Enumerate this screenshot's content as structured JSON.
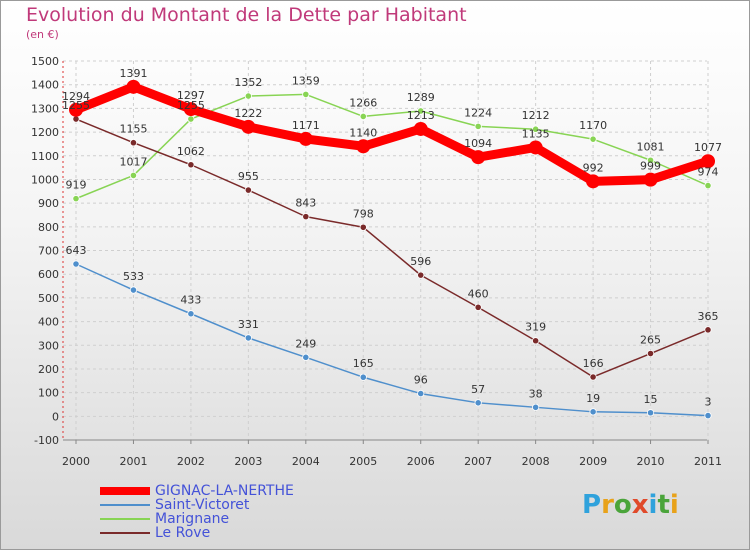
{
  "title": "Evolution du Montant de la Dette par Habitant",
  "subtitle": "(en €)",
  "logo": {
    "text": "Proxiti",
    "letter_colors": [
      "#2fa2dc",
      "#e8a21a",
      "#4aa43a",
      "#e04a2a",
      "#2fa2dc",
      "#4aa43a",
      "#e8a21a"
    ]
  },
  "chart_data": {
    "type": "line",
    "title": "Evolution du Montant de la Dette par Habitant",
    "subtitle": "(en €)",
    "x": [
      "2000",
      "2001",
      "2002",
      "2003",
      "2004",
      "2005",
      "2006",
      "2007",
      "2008",
      "2009",
      "2010",
      "2011"
    ],
    "ylim": [
      -100,
      1500
    ],
    "yticks": [
      "-100",
      "0",
      "100",
      "200",
      "300",
      "400",
      "500",
      "600",
      "700",
      "800",
      "900",
      "1000",
      "1100",
      "1200",
      "1300",
      "1400",
      "1500"
    ],
    "grid": true,
    "legend_position": "bottom-left",
    "series": [
      {
        "name": "GIGNAC-LA-NERTHE",
        "color": "#ff0000",
        "values": [
          1294,
          1391,
          1297,
          1222,
          1171,
          1140,
          1213,
          1094,
          1135,
          992,
          999,
          1077
        ],
        "labels": [
          "1294",
          "1391",
          "1297",
          "1222",
          "1171",
          "1140",
          "1213",
          "1094",
          "1135",
          "992",
          "999",
          "1077"
        ]
      },
      {
        "name": "Saint-Victoret",
        "color": "#4f8fcc",
        "values": [
          643,
          533,
          433,
          331,
          249,
          165,
          96,
          57,
          38,
          19,
          15,
          3
        ],
        "labels": [
          "643",
          "533",
          "433",
          "331",
          "249",
          "165",
          "96",
          "57",
          "38",
          "19",
          "15",
          "3"
        ]
      },
      {
        "name": "Marignane",
        "color": "#88d454",
        "values": [
          919,
          1017,
          1255,
          1352,
          1359,
          1266,
          1289,
          1224,
          1212,
          1170,
          1081,
          974
        ],
        "labels": [
          "919",
          "1017",
          "1255",
          "1352",
          "1359",
          "1266",
          "1289",
          "1224",
          "1212",
          "1170",
          "1081",
          "974"
        ]
      },
      {
        "name": "Le Rove",
        "color": "#7a2a2a",
        "values": [
          1255,
          1155,
          1062,
          955,
          843,
          798,
          596,
          460,
          319,
          166,
          265,
          365
        ],
        "labels": [
          "1255",
          "1155",
          "1062",
          "955",
          "843",
          "798",
          "596",
          "460",
          "319",
          "166",
          "265",
          "365"
        ]
      }
    ]
  }
}
